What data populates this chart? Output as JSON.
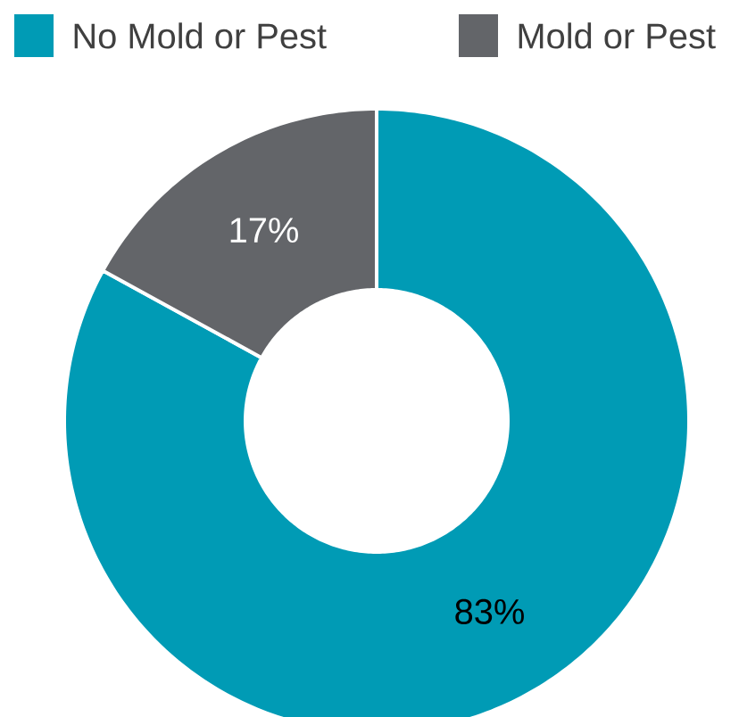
{
  "chart_data": {
    "type": "donut",
    "categories": [
      "No Mold or Pest",
      "Mold or Pest"
    ],
    "values": [
      83,
      17
    ],
    "colors": [
      "#009bb5",
      "#636569"
    ],
    "value_labels": [
      "83%",
      "17%"
    ],
    "legend": "top"
  }
}
